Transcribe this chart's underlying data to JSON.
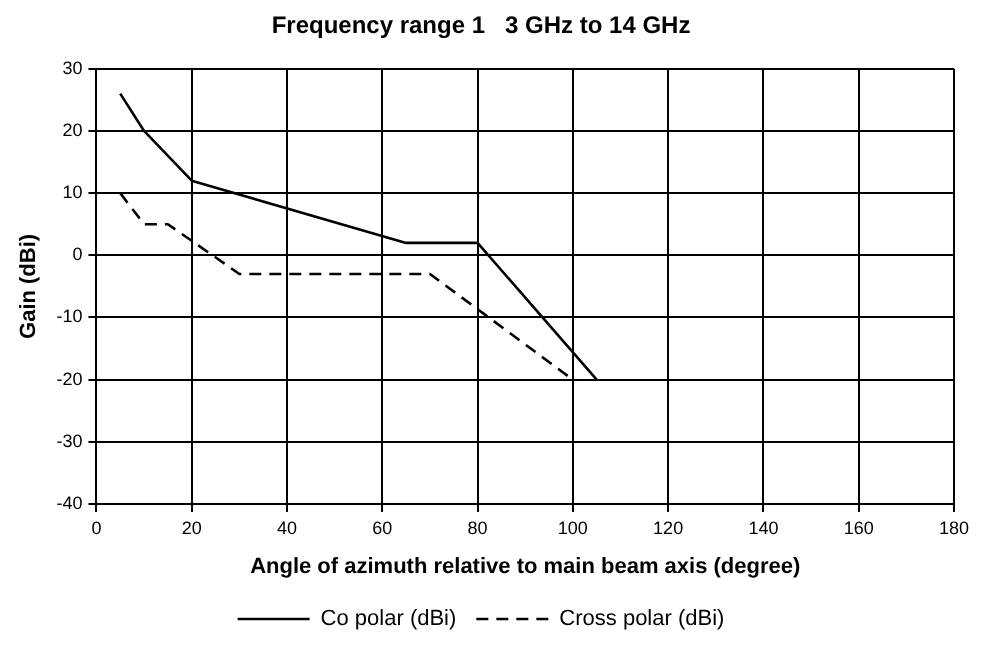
{
  "chart_data": {
    "type": "line",
    "title": "Frequency range 1   3 GHz to 14 GHz",
    "xlabel": "Angle of azimuth relative to main beam axis (degree)",
    "ylabel": "Gain (dBi)",
    "series": [
      {
        "name": "Co polar (dBi)",
        "color": "#000000",
        "line_style": "solid",
        "x": [
          5,
          10,
          20,
          65,
          80,
          105
        ],
        "values": [
          26,
          20,
          12,
          2,
          2,
          -20
        ]
      },
      {
        "name": "Cross polar (dBi)",
        "color": "#000000",
        "line_style": "dashed",
        "x": [
          5,
          10,
          15,
          30,
          70,
          100
        ],
        "values": [
          10,
          5,
          5,
          -3,
          -3,
          -20
        ]
      }
    ],
    "xlim": [
      0,
      180
    ],
    "xticks": [
      0,
      20,
      40,
      60,
      80,
      100,
      120,
      140,
      160,
      180
    ],
    "ylim": [
      -40,
      30
    ],
    "yticks": [
      -40,
      -30,
      -20,
      -10,
      0,
      10,
      20,
      30
    ],
    "grid": true,
    "legend": "bottom",
    "marker": "none"
  }
}
